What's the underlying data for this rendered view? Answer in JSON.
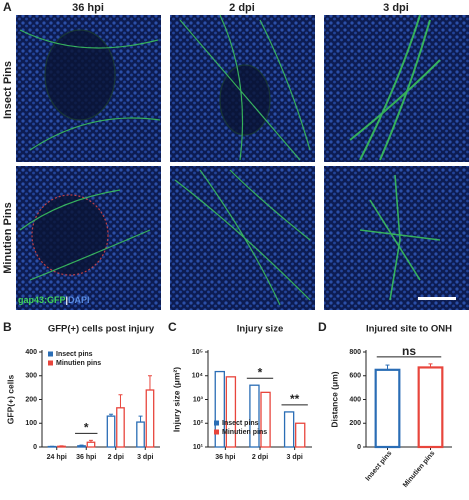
{
  "panel_a": {
    "label": "A",
    "columns": [
      "36 hpi",
      "2 dpi",
      "3 dpi"
    ],
    "rows": [
      "Insect Pins",
      "Minutien Pins"
    ],
    "stain_label": [
      "gap43:GFP",
      "|",
      "DAPI"
    ]
  },
  "chart_data": [
    {
      "type": "bar",
      "label": "B",
      "title": "GFP(+) cells post injury",
      "y_label": "GFP(+) cells",
      "categories": [
        "24 hpi",
        "36 hpi",
        "2 dpi",
        "3 dpi"
      ],
      "series": [
        {
          "name": "Insect pins",
          "color": "#2a6db5",
          "values": [
            2,
            5,
            130,
            105
          ],
          "errors": [
            1,
            3,
            8,
            25
          ]
        },
        {
          "name": "Minutien pins",
          "color": "#e8453c",
          "values": [
            3,
            20,
            165,
            240
          ],
          "errors": [
            2,
            8,
            55,
            60
          ]
        }
      ],
      "ylim": [
        0,
        400
      ],
      "yticks": [
        0,
        100,
        200,
        300,
        400
      ],
      "legend": "upper left",
      "annotations": [
        {
          "text": "*",
          "category": "36 hpi"
        }
      ]
    },
    {
      "type": "bar",
      "label": "C",
      "title": "Injury size",
      "y_label": "Injury size (μm²)",
      "log": true,
      "categories": [
        "36 hpi",
        "2 dpi",
        "3 dpi"
      ],
      "series": [
        {
          "name": "Insect pins",
          "color": "#2a6db5",
          "values": [
            15000,
            4000,
            300
          ]
        },
        {
          "name": "Minutien pins",
          "color": "#e8453c",
          "values": [
            9000,
            2000,
            100
          ]
        }
      ],
      "ylim": [
        10,
        100000
      ],
      "yticks": [
        {
          "value": 10,
          "label": "10¹"
        },
        {
          "value": 100,
          "label": "10²"
        },
        {
          "value": 1000,
          "label": "10³"
        },
        {
          "value": 10000,
          "label": "10⁴"
        },
        {
          "value": 100000,
          "label": "10⁵"
        }
      ],
      "legend": "lower left",
      "annotations": [
        {
          "text": "*",
          "category": "2 dpi"
        },
        {
          "text": "**",
          "category": "3 dpi"
        }
      ]
    },
    {
      "type": "bar",
      "label": "D",
      "title": "Injured site to ONH",
      "y_label": "Distance (μm)",
      "categories": [
        "Insect pins",
        "Minutien pins"
      ],
      "values": [
        650,
        670
      ],
      "errors": [
        40,
        30
      ],
      "colors": [
        "#2a6db5",
        "#e8453c"
      ],
      "ylim": [
        0,
        800
      ],
      "yticks": [
        0,
        200,
        400,
        600,
        800
      ],
      "annotations": [
        {
          "text": "ns"
        }
      ]
    }
  ]
}
